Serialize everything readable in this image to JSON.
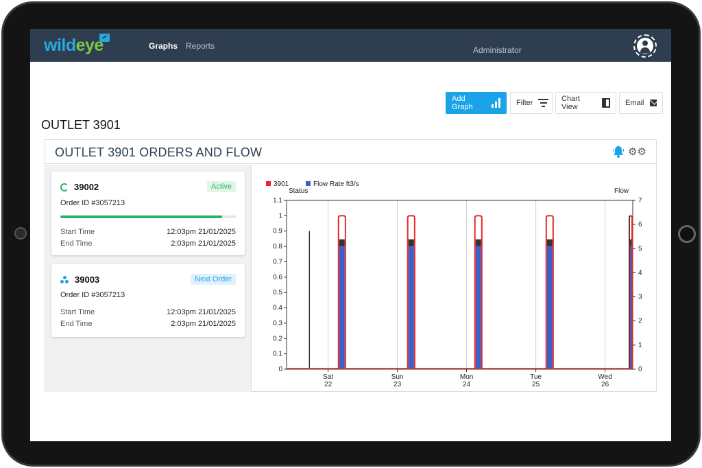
{
  "app": {
    "logo_part1": "wild",
    "logo_part2": "eye",
    "nav": {
      "graphs": "Graphs",
      "reports": "Reports"
    },
    "user": "Administrator"
  },
  "toolbar": {
    "add_graph": "Add Graph",
    "filter": "Filter",
    "chart_view": "Chart View",
    "email": "Email"
  },
  "page": {
    "title": "OUTLET 3901"
  },
  "panel": {
    "title": "OUTLET 3901 ORDERS AND  FLOW",
    "icons": [
      "bell-icon",
      "gears-icon"
    ]
  },
  "orders": [
    {
      "number": "39002",
      "status": "Active",
      "order_id": "Order ID #3057213",
      "progress": 0.92,
      "start_label": "Start Time",
      "start_value": "12:03pm 21/01/2025",
      "end_label": "End Time",
      "end_value": "2:03pm 21/01/2025"
    },
    {
      "number": "39003",
      "status": "Next Order",
      "order_id": "Order ID #3057213",
      "start_label": "Start Time",
      "start_value": "12:03pm 21/01/2025",
      "end_label": "End Time",
      "end_value": "2:03pm 21/01/2025"
    }
  ],
  "colors": {
    "topbar": "#2e3e50",
    "accent": "#1ba3e8",
    "active": "#28b463",
    "status_series": "#e8282b",
    "flow_series": "#3a62c8"
  },
  "chart_data": {
    "type": "bar",
    "title": "",
    "legend": [
      {
        "name": "3901",
        "color": "#e8282b"
      },
      {
        "name": "Flow Rate ft3/s",
        "color": "#3a62c8"
      }
    ],
    "legend_placement": "top-left",
    "ylabel_left": "Status",
    "ylabel_right": "Flow",
    "ylim_left": [
      0,
      1.1
    ],
    "yticks_left": [
      "0",
      "0.1",
      "0.2",
      "0.3",
      "0.4",
      "0.5",
      "0.6",
      "0.7",
      "0.8",
      "0.9",
      "1",
      "1.1"
    ],
    "ylim_right": [
      0,
      7
    ],
    "yticks_right": [
      "0",
      "1",
      "2",
      "3",
      "4",
      "5",
      "6",
      "7"
    ],
    "x_range_days": [
      21.4,
      26.4
    ],
    "xticks": [
      {
        "day": "Sat",
        "date": "22",
        "x": 22
      },
      {
        "day": "Sun",
        "date": "23",
        "x": 23
      },
      {
        "day": "Mon",
        "date": "24",
        "x": 24
      },
      {
        "day": "Tue",
        "date": "25",
        "x": 25
      },
      {
        "day": "Wed",
        "date": "26",
        "x": 26
      }
    ],
    "grid": "vertical",
    "status_windows": [
      {
        "start": 22.15,
        "end": 22.25,
        "value": 1
      },
      {
        "start": 23.15,
        "end": 23.25,
        "value": 1
      },
      {
        "start": 24.12,
        "end": 24.22,
        "value": 1
      },
      {
        "start": 25.15,
        "end": 25.25,
        "value": 1
      },
      {
        "start": 26.35,
        "end": 26.4,
        "value": 1
      }
    ],
    "flow_bars": [
      {
        "start": 22.16,
        "end": 22.24,
        "value": 5.1
      },
      {
        "start": 23.16,
        "end": 23.24,
        "value": 5.1
      },
      {
        "start": 24.13,
        "end": 24.21,
        "value": 5.1
      },
      {
        "start": 25.16,
        "end": 25.24,
        "value": 5.1
      },
      {
        "start": 26.35,
        "end": 26.4,
        "value": 5.1
      }
    ],
    "spikes": [
      {
        "x": 21.73,
        "value": 0.9
      },
      {
        "x": 26.35,
        "value": 1.0
      }
    ]
  }
}
